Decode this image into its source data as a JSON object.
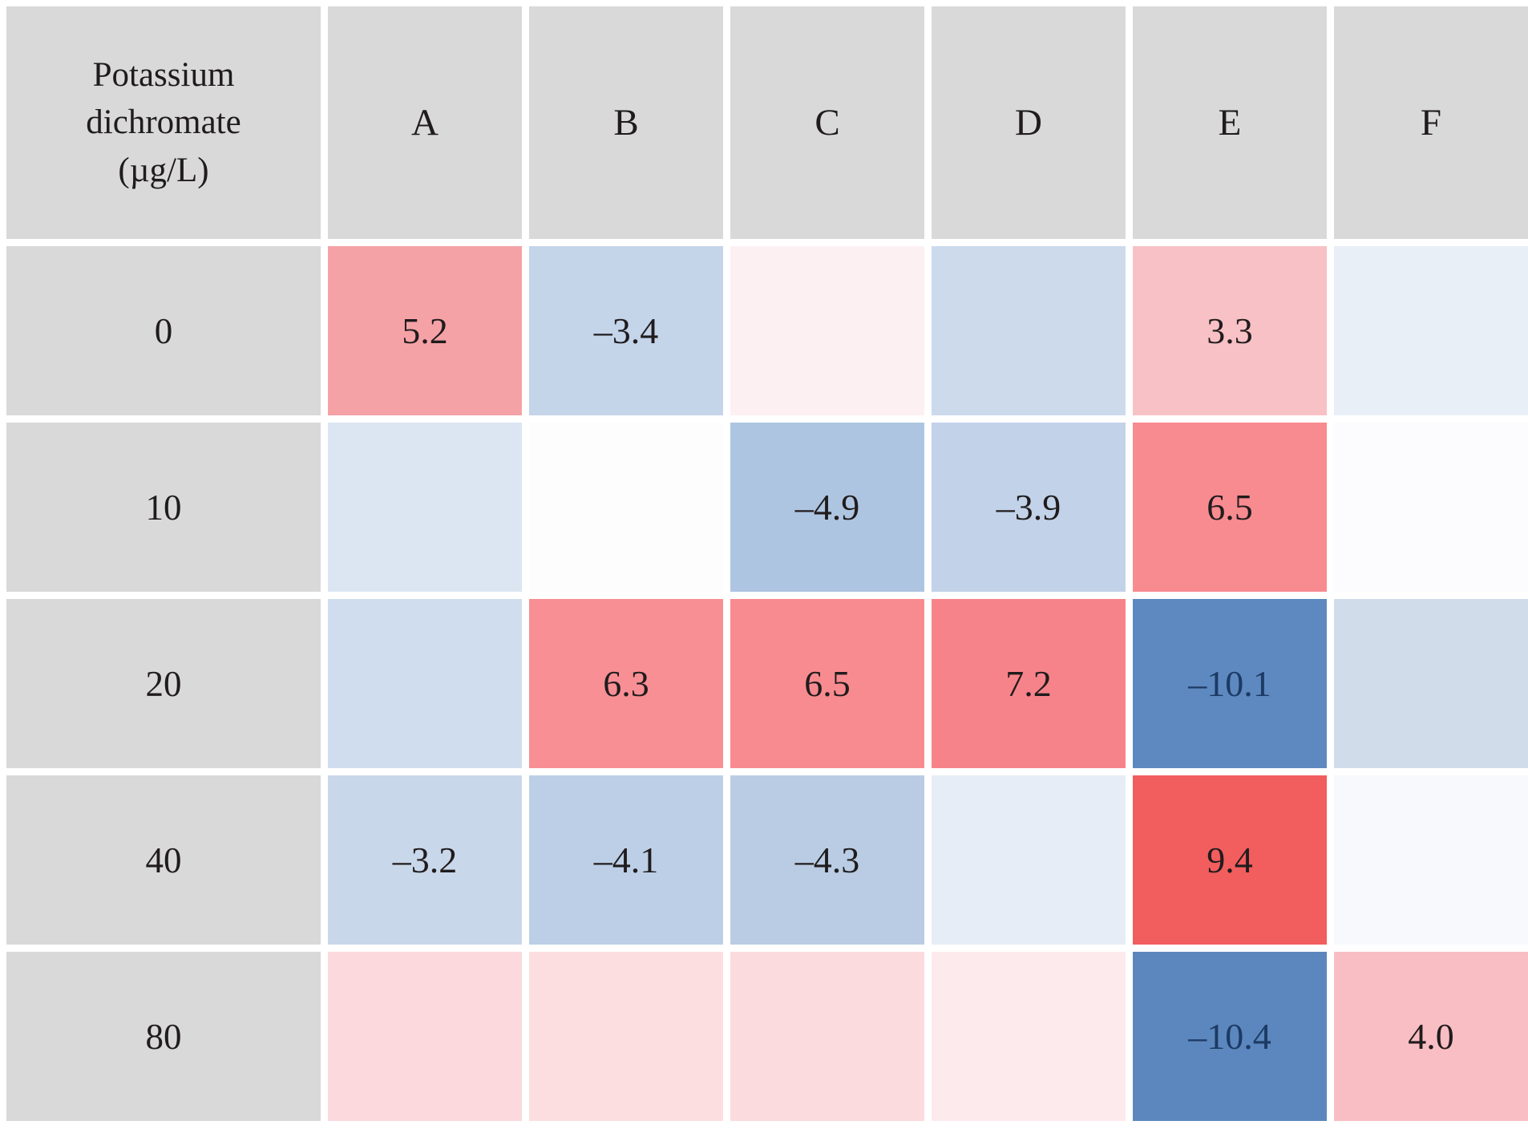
{
  "figure": {
    "corner_label": "Potassium\ndichromate\n(µg/L)",
    "columns": [
      "A",
      "B",
      "C",
      "D",
      "E",
      "F"
    ],
    "header_bg": "#d9d9d9",
    "gridline_color": "#ffffff",
    "positive_color_max": "#f25d5e",
    "negative_color_max": "#5b87be",
    "rows": [
      {
        "label": "0",
        "cells": [
          {
            "text": "5.2",
            "bg": "#f5a2a6",
            "fg": "#201c1d"
          },
          {
            "text": "–3.4",
            "bg": "#c4d4e9",
            "fg": "#201c1d"
          },
          {
            "text": "",
            "bg": "#fdf0f2",
            "fg": "#201c1d"
          },
          {
            "text": "",
            "bg": "#ccdaec",
            "fg": "#201c1d"
          },
          {
            "text": "3.3",
            "bg": "#f8c1c5",
            "fg": "#201c1d"
          },
          {
            "text": "",
            "bg": "#e9eff7",
            "fg": "#201c1d"
          }
        ]
      },
      {
        "label": "10",
        "cells": [
          {
            "text": "",
            "bg": "#dce6f2",
            "fg": "#201c1d"
          },
          {
            "text": "",
            "bg": "#fdfdfe",
            "fg": "#201c1d"
          },
          {
            "text": "–4.9",
            "bg": "#aec5e1",
            "fg": "#201c1d"
          },
          {
            "text": "–3.9",
            "bg": "#c2d2e8",
            "fg": "#201c1d"
          },
          {
            "text": "6.5",
            "bg": "#f88b90",
            "fg": "#201c1d"
          },
          {
            "text": "",
            "bg": "#fcfbfd",
            "fg": "#201c1d"
          }
        ]
      },
      {
        "label": "20",
        "cells": [
          {
            "text": "",
            "bg": "#d0ddee",
            "fg": "#201c1d"
          },
          {
            "text": "6.3",
            "bg": "#f88f94",
            "fg": "#201c1d"
          },
          {
            "text": "6.5",
            "bg": "#f88b90",
            "fg": "#201c1d"
          },
          {
            "text": "7.2",
            "bg": "#f7838a",
            "fg": "#201c1d"
          },
          {
            "text": "–10.1",
            "bg": "#5d89c0",
            "fg": "#1c3a63"
          },
          {
            "text": "",
            "bg": "#d0dcea",
            "fg": "#201c1d"
          }
        ]
      },
      {
        "label": "40",
        "cells": [
          {
            "text": "–3.2",
            "bg": "#c9d7ea",
            "fg": "#201c1d"
          },
          {
            "text": "–4.1",
            "bg": "#bccfe6",
            "fg": "#201c1d"
          },
          {
            "text": "–4.3",
            "bg": "#b9cce4",
            "fg": "#201c1d"
          },
          {
            "text": "",
            "bg": "#e7edf6",
            "fg": "#201c1d"
          },
          {
            "text": "9.4",
            "bg": "#f25d5e",
            "fg": "#201c1d"
          },
          {
            "text": "",
            "bg": "#f8f9fc",
            "fg": "#201c1d"
          }
        ]
      },
      {
        "label": "80",
        "cells": [
          {
            "text": "",
            "bg": "#fbd9dc",
            "fg": "#201c1d"
          },
          {
            "text": "",
            "bg": "#fcdee1",
            "fg": "#201c1d"
          },
          {
            "text": "",
            "bg": "#fbdbde",
            "fg": "#201c1d"
          },
          {
            "text": "",
            "bg": "#fdeaec",
            "fg": "#201c1d"
          },
          {
            "text": "–10.4",
            "bg": "#5b87be",
            "fg": "#1c3a63"
          },
          {
            "text": "4.0",
            "bg": "#f9bec3",
            "fg": "#201c1d"
          }
        ]
      }
    ]
  },
  "chart_data": {
    "type": "heatmap",
    "title": "",
    "x_categories": [
      "A",
      "B",
      "C",
      "D",
      "E",
      "F"
    ],
    "y_categories": [
      "0",
      "10",
      "20",
      "40",
      "80"
    ],
    "y_axis_label": "Potassium dichromate (µg/L)",
    "values": [
      [
        5.2,
        -3.4,
        null,
        null,
        3.3,
        null
      ],
      [
        null,
        null,
        -4.9,
        -3.9,
        6.5,
        null
      ],
      [
        null,
        6.3,
        6.5,
        7.2,
        -10.1,
        null
      ],
      [
        -3.2,
        -4.1,
        -4.3,
        null,
        9.4,
        null
      ],
      [
        null,
        null,
        null,
        null,
        -10.4,
        4.0
      ]
    ],
    "value_labels_shown": [
      [
        true,
        true,
        false,
        false,
        true,
        false
      ],
      [
        false,
        false,
        true,
        true,
        true,
        false
      ],
      [
        false,
        true,
        true,
        true,
        true,
        false
      ],
      [
        true,
        true,
        true,
        false,
        true,
        false
      ],
      [
        false,
        false,
        false,
        false,
        true,
        true
      ]
    ],
    "colorscale": "diverging red (positive) to blue (negative), white near zero",
    "legend_position": "none",
    "grid": "white gridlines between cells"
  }
}
